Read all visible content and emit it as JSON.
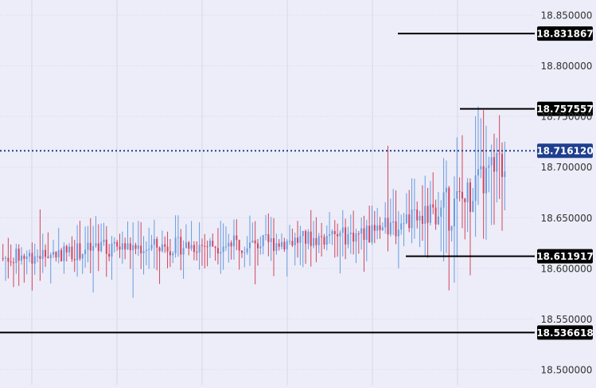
{
  "chart_data": {
    "type": "candlestick",
    "title": "",
    "xlabel": "",
    "ylabel": "",
    "ylim": [
      18.485,
      18.865
    ],
    "y_ticks": [
      "18.850000",
      "18.800000",
      "18.750000",
      "18.700000",
      "18.650000",
      "18.600000",
      "18.550000",
      "18.500000"
    ],
    "y_tick_values": [
      18.85,
      18.8,
      18.75,
      18.7,
      18.65,
      18.6,
      18.55,
      18.5
    ],
    "grid": true,
    "current_price": {
      "label": "18.716120",
      "value": 18.71612
    },
    "levels": [
      {
        "label": "18.831867",
        "value": 18.831867
      },
      {
        "label": "18.757557",
        "value": 18.757557
      },
      {
        "label": "18.611917",
        "value": 18.611917
      },
      {
        "label": "18.536618",
        "value": 18.536618
      }
    ],
    "colors": {
      "background": "#ecedf8",
      "grid": "#d6d8ea",
      "up": "#6a9be0",
      "down": "#d2445c",
      "level_line": "#000000",
      "level_label_bg": "#000000",
      "current_line": "#1f3f8f",
      "current_label_bg": "#1f3f8f",
      "tick_text": "#333333"
    },
    "series_ohlc": {
      "seed": 7,
      "count": 190,
      "segments": [
        {
          "n": 40,
          "start": 18.61,
          "end": 18.62
        },
        {
          "n": 60,
          "start": 18.62,
          "end": 18.625
        },
        {
          "n": 40,
          "start": 18.625,
          "end": 18.635
        },
        {
          "n": 30,
          "start": 18.635,
          "end": 18.66
        },
        {
          "n": 20,
          "start": 18.66,
          "end": 18.705
        }
      ]
    }
  }
}
